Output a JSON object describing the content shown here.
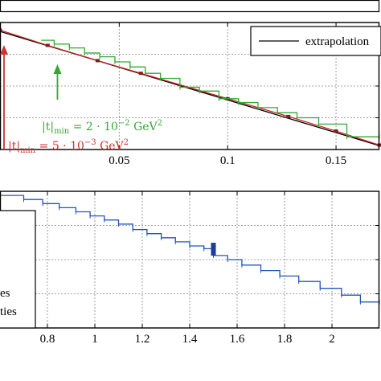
{
  "chart_data": [
    {
      "type": "line",
      "xlim": [
        -0.005,
        0.17
      ],
      "ylim": [
        0,
        1
      ],
      "x_ticks": [
        0.05,
        0.1,
        0.15
      ],
      "x_tick_labels": [
        "0.05",
        "0.1",
        "0.15"
      ],
      "grid": true,
      "legend_position": "top-right",
      "series": [
        {
          "name": "extrapolation",
          "color": "#000000",
          "x": [
            -0.005,
            0.17
          ],
          "y": [
            0.93,
            0.03
          ]
        },
        {
          "name": "",
          "color": "#cc2222",
          "x": [
            -0.005,
            0.017,
            0.04,
            0.06,
            0.1,
            0.128,
            0.15,
            0.17
          ],
          "y": [
            0.94,
            0.82,
            0.7,
            0.6,
            0.4,
            0.26,
            0.145,
            0.035
          ]
        },
        {
          "name": "",
          "color": "#33aa33",
          "steps": [
            [
              0.014,
              0.86
            ],
            [
              0.02,
              0.83
            ],
            [
              0.027,
              0.8
            ],
            [
              0.034,
              0.76
            ],
            [
              0.041,
              0.73
            ],
            [
              0.048,
              0.69
            ],
            [
              0.055,
              0.65
            ],
            [
              0.062,
              0.6
            ],
            [
              0.069,
              0.56
            ],
            [
              0.078,
              0.49
            ],
            [
              0.087,
              0.46
            ],
            [
              0.096,
              0.4
            ],
            [
              0.105,
              0.37
            ],
            [
              0.114,
              0.33
            ],
            [
              0.123,
              0.29
            ],
            [
              0.132,
              0.25
            ],
            [
              0.142,
              0.2
            ],
            [
              0.155,
              0.1
            ],
            [
              0.17,
              0.1
            ]
          ]
        }
      ],
      "annotations": [
        {
          "color": "#33aa33",
          "x": 0.0215,
          "text_lines": [
            "|t|",
            "min",
            " = 2 · 10",
            "−2",
            " GeV",
            "2"
          ]
        },
        {
          "color": "#cc3333",
          "x": -0.004,
          "text_lines": [
            "|t|",
            "min",
            " = 5 · 10",
            "−3",
            " GeV",
            "2"
          ]
        }
      ],
      "legend": [
        "extrapolation"
      ]
    },
    {
      "type": "line",
      "xlim": [
        0.6,
        2.2
      ],
      "ylim": [
        0,
        1
      ],
      "x_ticks": [
        0.8,
        1,
        1.2,
        1.4,
        1.6,
        1.8,
        2
      ],
      "x_tick_labels": [
        "0.8",
        "1",
        "1.2",
        "1.4",
        "1.6",
        "1.8",
        "2"
      ],
      "grid": true,
      "series": [
        {
          "name": "",
          "color": "#2255bb",
          "steps": [
            [
              0.6,
              0.97
            ],
            [
              0.7,
              0.94
            ],
            [
              0.78,
              0.91
            ],
            [
              0.85,
              0.88
            ],
            [
              0.92,
              0.85
            ],
            [
              0.98,
              0.82
            ],
            [
              1.04,
              0.79
            ],
            [
              1.1,
              0.76
            ],
            [
              1.16,
              0.72
            ],
            [
              1.22,
              0.69
            ],
            [
              1.28,
              0.66
            ],
            [
              1.34,
              0.63
            ],
            [
              1.4,
              0.6
            ],
            [
              1.46,
              0.58
            ],
            [
              1.5,
              0.53
            ],
            [
              1.56,
              0.5
            ],
            [
              1.62,
              0.46
            ],
            [
              1.7,
              0.42
            ],
            [
              1.78,
              0.38
            ],
            [
              1.86,
              0.34
            ],
            [
              1.95,
              0.29
            ],
            [
              2.04,
              0.24
            ],
            [
              2.12,
              0.19
            ],
            [
              2.2,
              0.19
            ]
          ]
        }
      ],
      "legend": [
        "es",
        "ties"
      ]
    }
  ]
}
